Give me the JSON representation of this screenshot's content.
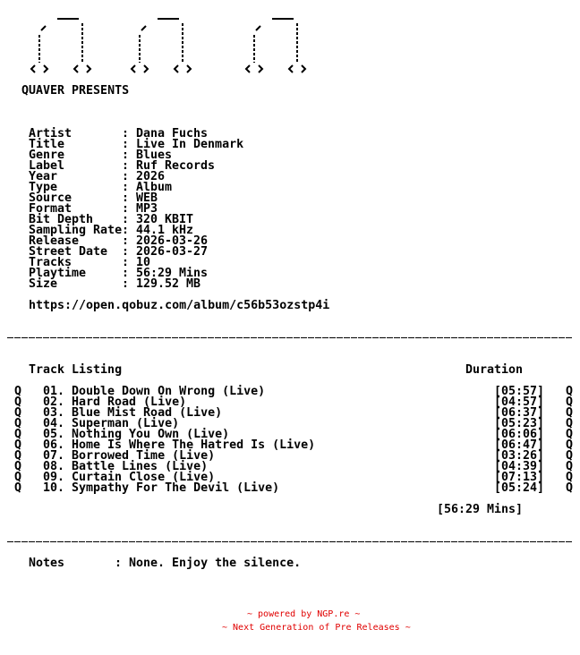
{
  "header": {
    "presents": "QUAVER PRESENTS"
  },
  "info": [
    {
      "label": "Artist",
      "value": "Dana Fuchs"
    },
    {
      "label": "Title",
      "value": "Live In Denmark"
    },
    {
      "label": "Genre",
      "value": "Blues"
    },
    {
      "label": "Label",
      "value": "Ruf Records"
    },
    {
      "label": "Year",
      "value": "2026"
    },
    {
      "label": "Type",
      "value": "Album"
    },
    {
      "label": "Source",
      "value": "WEB"
    },
    {
      "label": "Format",
      "value": "MP3"
    },
    {
      "label": "Bit Depth",
      "value": "320 KBIT"
    },
    {
      "label": "Sampling Rate",
      "value": "44.1 kHz"
    },
    {
      "label": "Release",
      "value": "2026-03-26"
    },
    {
      "label": "Street Date",
      "value": "2026-03-27"
    },
    {
      "label": "Tracks",
      "value": "10"
    },
    {
      "label": "Playtime",
      "value": "56:29 Mins"
    },
    {
      "label": "Size",
      "value": "129.52 MB"
    }
  ],
  "url": "https://open.qobuz.com/album/c56b53ozstp4i",
  "tracklist": {
    "heading": "Track Listing",
    "duration_heading": "Duration",
    "marker": "Q",
    "tracks": [
      {
        "num": "01.",
        "title": "Double Down On Wrong (Live)",
        "duration": "[05:57]"
      },
      {
        "num": "02.",
        "title": "Hard Road (Live)",
        "duration": "[04:57]"
      },
      {
        "num": "03.",
        "title": "Blue Mist Road (Live)",
        "duration": "[06:37]"
      },
      {
        "num": "04.",
        "title": "Superman (Live)",
        "duration": "[05:23]"
      },
      {
        "num": "05.",
        "title": "Nothing You Own (Live)",
        "duration": "[06:06]"
      },
      {
        "num": "06.",
        "title": "Home Is Where The Hatred Is (Live)",
        "duration": "[06:47]"
      },
      {
        "num": "07.",
        "title": "Borrowed Time (Live)",
        "duration": "[03:26]"
      },
      {
        "num": "08.",
        "title": "Battle Lines (Live)",
        "duration": "[04:39]"
      },
      {
        "num": "09.",
        "title": "Curtain Close (Live)",
        "duration": "[07:13]"
      },
      {
        "num": "10.",
        "title": "Sympathy For The Devil (Live)",
        "duration": "[05:24]"
      }
    ],
    "total": "[56:29 Mins]"
  },
  "notes": {
    "label": "Notes",
    "value": ": None. Enjoy the silence."
  },
  "footer": {
    "line1": "~ powered by NGP.re ~",
    "line2": "~ Next Generation of Pre Releases ~",
    "color": "#e00000"
  }
}
